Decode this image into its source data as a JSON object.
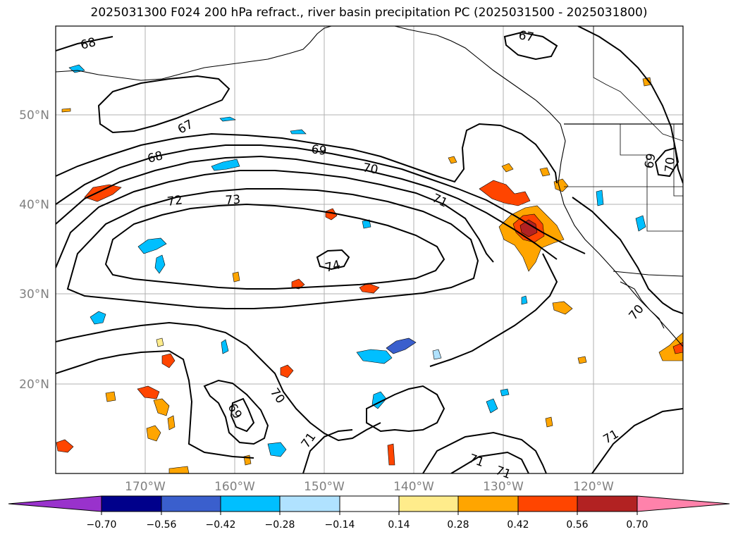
{
  "title": "2025031300 F024 200 hPa refract., river basin precipitation PC (2025031500 - 2025031800)",
  "map": {
    "lon_labels": [
      "170°W",
      "160°W",
      "150°W",
      "140°W",
      "130°W",
      "120°W"
    ],
    "lat_labels": [
      "50°N",
      "40°N",
      "30°N",
      "20°N"
    ],
    "gridlines": true,
    "contour_color": "#000000",
    "contour_labels": [
      {
        "id": "c67a",
        "text": "67"
      },
      {
        "id": "c67b",
        "text": "67"
      },
      {
        "id": "c68a",
        "text": "68"
      },
      {
        "id": "c68b",
        "text": "68"
      },
      {
        "id": "c69a",
        "text": "69"
      },
      {
        "id": "c69b",
        "text": "69"
      },
      {
        "id": "c69c",
        "text": "69"
      },
      {
        "id": "c70a",
        "text": "70"
      },
      {
        "id": "c70b",
        "text": "70"
      },
      {
        "id": "c70c",
        "text": "70"
      },
      {
        "id": "c71a",
        "text": "71"
      },
      {
        "id": "c71b",
        "text": "71"
      },
      {
        "id": "c71c",
        "text": "71"
      },
      {
        "id": "c71d",
        "text": "71"
      },
      {
        "id": "c71e",
        "text": "71"
      },
      {
        "id": "c72",
        "text": "72"
      },
      {
        "id": "c73",
        "text": "73"
      },
      {
        "id": "c74",
        "text": "74"
      },
      {
        "id": "c70d",
        "text": "70"
      }
    ]
  },
  "colorbar": {
    "colors": [
      "#9932cc",
      "#00008b",
      "#3a5fcd",
      "#00bfff",
      "#b0e2ff",
      "#ffffff",
      "#ffec8b",
      "#ffa500",
      "#ff4500",
      "#b22222",
      "#ff82ab"
    ],
    "tick_labels": [
      "−0.70",
      "−0.56",
      "−0.42",
      "−0.28",
      "−0.14",
      "0.14",
      "0.28",
      "0.42",
      "0.56",
      "0.70"
    ]
  }
}
